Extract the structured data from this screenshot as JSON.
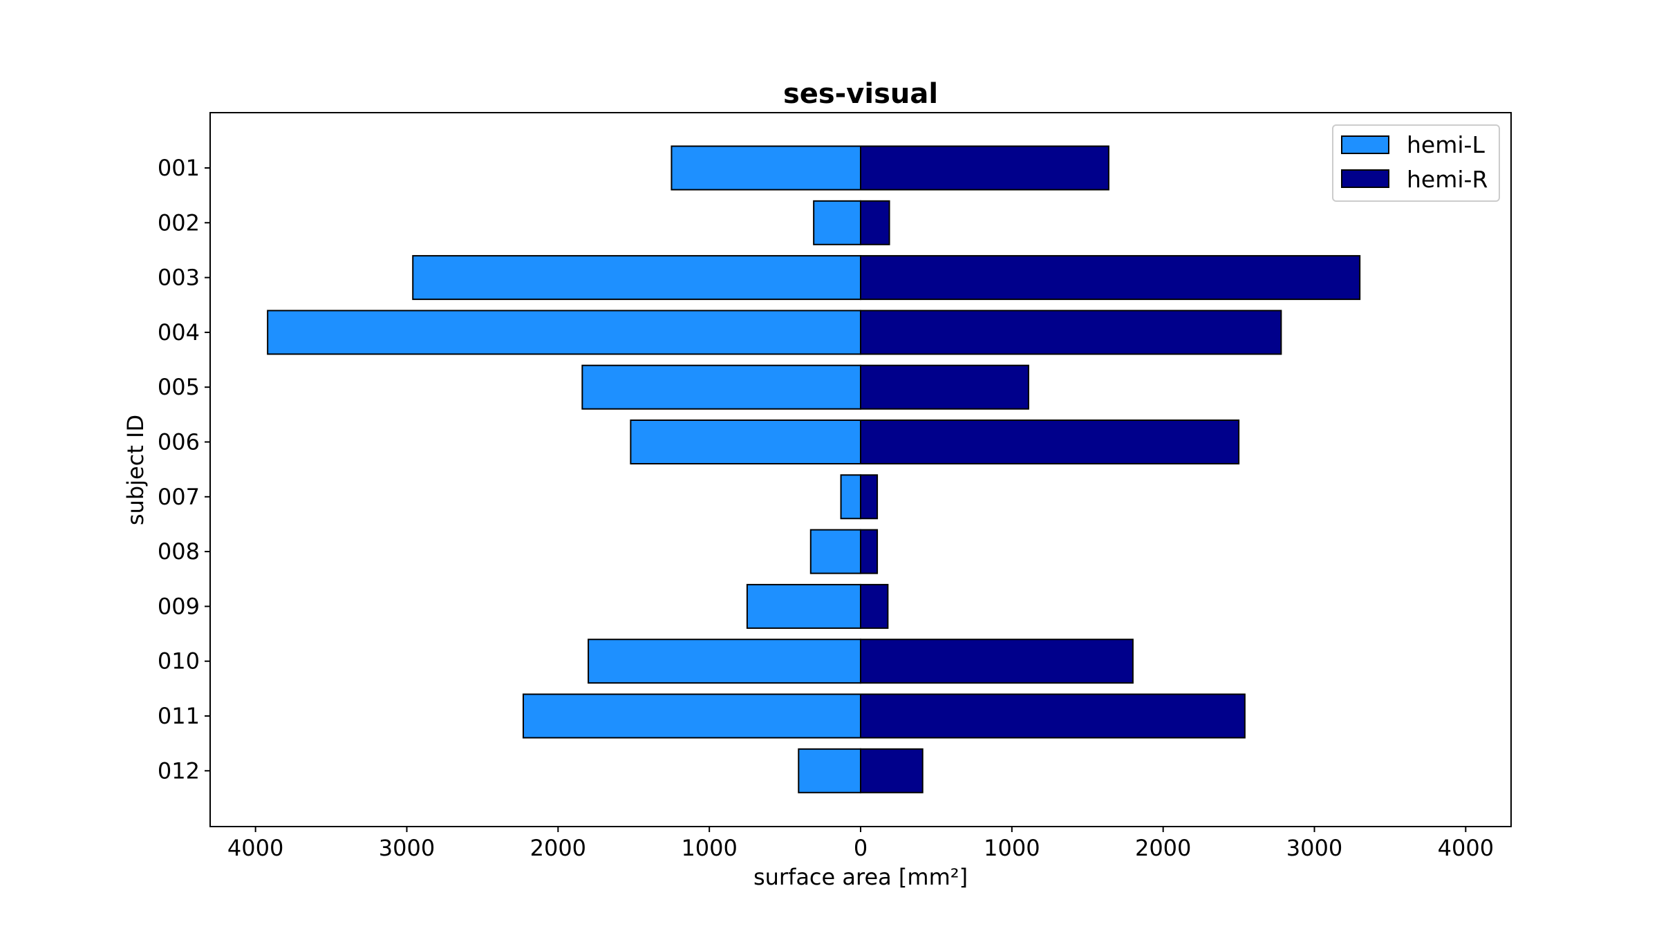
{
  "chart_data": {
    "type": "bar",
    "orientation": "horizontal-diverging",
    "title": "ses-visual",
    "xlabel": "surface area [mm²]",
    "ylabel": "subject ID",
    "xlim": [
      -4300,
      4300
    ],
    "xticks": [
      -4000,
      -3000,
      -2000,
      -1000,
      0,
      1000,
      2000,
      3000,
      4000
    ],
    "xtick_labels": [
      "4000",
      "3000",
      "2000",
      "1000",
      "0",
      "1000",
      "2000",
      "3000",
      "4000"
    ],
    "categories": [
      "001",
      "002",
      "003",
      "004",
      "005",
      "006",
      "007",
      "008",
      "009",
      "010",
      "011",
      "012"
    ],
    "grid": false,
    "legend_position": "top-right",
    "series": [
      {
        "name": "hemi-L",
        "color": "#1e90ff",
        "direction": "left",
        "values": [
          1250,
          310,
          2960,
          3920,
          1840,
          1520,
          130,
          330,
          750,
          1800,
          2230,
          410
        ]
      },
      {
        "name": "hemi-R",
        "color": "#00008b",
        "direction": "right",
        "values": [
          1640,
          190,
          3300,
          2780,
          1110,
          2500,
          110,
          110,
          180,
          1800,
          2540,
          410
        ]
      }
    ]
  }
}
